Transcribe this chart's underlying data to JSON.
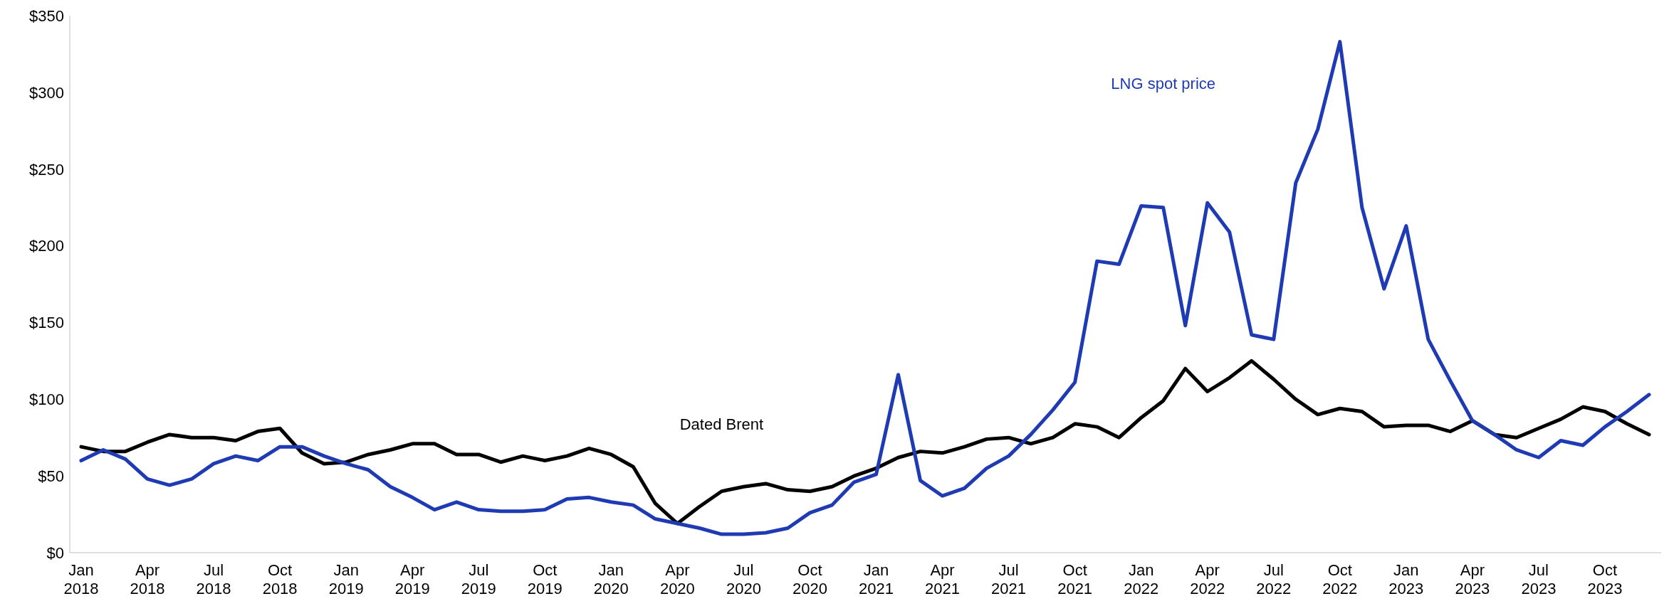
{
  "chart_data": {
    "type": "line",
    "categories": [
      "Jan 2018",
      null,
      null,
      "Apr 2018",
      null,
      null,
      "Jul 2018",
      null,
      null,
      "Oct 2018",
      null,
      null,
      "Jan 2019",
      null,
      null,
      "Apr 2019",
      null,
      null,
      "Jul 2019",
      null,
      null,
      "Oct 2019",
      null,
      null,
      "Jan 2020",
      null,
      null,
      "Apr 2020",
      null,
      null,
      "Jul 2020",
      null,
      null,
      "Oct 2020",
      null,
      null,
      "Jan 2021",
      null,
      null,
      "Apr 2021",
      null,
      null,
      "Jul 2021",
      null,
      null,
      "Oct 2021",
      null,
      null,
      "Jan 2022",
      null,
      null,
      "Apr 2022",
      null,
      null,
      "Jul 2022",
      null,
      null,
      "Oct 2022",
      null,
      null,
      "Jan 2023",
      null,
      null,
      "Apr 2023",
      null,
      null,
      "Jul 2023",
      null,
      null,
      "Oct 2023",
      null,
      null
    ],
    "series": [
      {
        "name": "Dated Brent",
        "color": "#000000",
        "values": [
          69,
          66,
          66,
          72,
          77,
          75,
          75,
          73,
          79,
          81,
          65,
          58,
          59,
          64,
          67,
          71,
          71,
          64,
          64,
          59,
          63,
          60,
          63,
          68,
          64,
          56,
          32,
          19,
          30,
          40,
          43,
          45,
          41,
          40,
          43,
          50,
          55,
          62,
          66,
          65,
          69,
          74,
          75,
          71,
          75,
          84,
          82,
          75,
          88,
          99,
          120,
          105,
          114,
          125,
          113,
          100,
          90,
          94,
          92,
          82,
          83,
          83,
          79,
          86,
          77,
          75,
          81,
          87,
          95,
          92,
          84,
          77
        ]
      },
      {
        "name": "LNG spot price",
        "color": "#1f3bb3",
        "values": [
          60,
          67,
          61,
          48,
          44,
          48,
          58,
          63,
          60,
          69,
          69,
          63,
          58,
          54,
          43,
          36,
          28,
          33,
          28,
          27,
          27,
          28,
          35,
          36,
          33,
          31,
          22,
          19,
          16,
          12,
          12,
          13,
          16,
          26,
          31,
          46,
          51,
          116,
          47,
          37,
          42,
          55,
          63,
          77,
          93,
          111,
          190,
          188,
          226,
          225,
          148,
          228,
          209,
          142,
          139,
          241,
          276,
          333,
          225,
          172,
          213,
          139,
          112,
          86,
          77,
          67,
          62,
          73,
          70,
          82,
          92,
          103
        ]
      }
    ],
    "ylim": [
      0,
      350
    ],
    "yticks": [
      {
        "value": 0,
        "label": "$0"
      },
      {
        "value": 50,
        "label": "$50"
      },
      {
        "value": 100,
        "label": "$100"
      },
      {
        "value": 150,
        "label": "$150"
      },
      {
        "value": 200,
        "label": "$200"
      },
      {
        "value": 250,
        "label": "$250"
      },
      {
        "value": 300,
        "label": "$300"
      },
      {
        "value": 350,
        "label": "$350"
      }
    ],
    "grid": false,
    "legend": false,
    "marker": "none",
    "line_style": "solid"
  }
}
